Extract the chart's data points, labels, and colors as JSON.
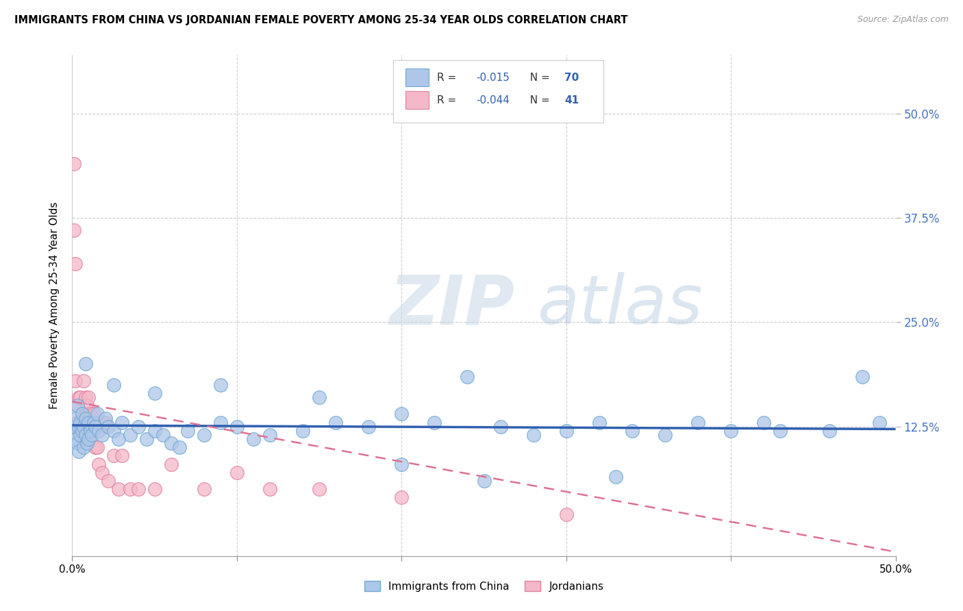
{
  "title": "IMMIGRANTS FROM CHINA VS JORDANIAN FEMALE POVERTY AMONG 25-34 YEAR OLDS CORRELATION CHART",
  "source": "Source: ZipAtlas.com",
  "ylabel": "Female Poverty Among 25-34 Year Olds",
  "watermark_zip": "ZIP",
  "watermark_atlas": "atlas",
  "xlim": [
    0.0,
    0.5
  ],
  "ylim": [
    -0.03,
    0.57
  ],
  "xtick_positions": [
    0.0,
    0.1,
    0.2,
    0.3,
    0.4,
    0.5
  ],
  "xtick_labels": [
    "0.0%",
    "",
    "",
    "",
    "",
    "50.0%"
  ],
  "right_yticks": [
    0.125,
    0.25,
    0.375,
    0.5
  ],
  "right_ytick_labels": [
    "12.5%",
    "25.0%",
    "37.5%",
    "50.0%"
  ],
  "series1_label": "Immigrants from China",
  "series1_color": "#aec6e8",
  "series1_edge_color": "#6fa8d4",
  "series2_label": "Jordanians",
  "series2_color": "#f4b8c8",
  "series2_edge_color": "#e080a0",
  "trendline1_color": "#3060b0",
  "trendline2_color": "#e07090",
  "legend_r1": "-0.015",
  "legend_n1": "70",
  "legend_r2": "-0.044",
  "legend_n2": "41",
  "blue_scatter_x": [
    0.001,
    0.002,
    0.002,
    0.003,
    0.003,
    0.004,
    0.004,
    0.005,
    0.005,
    0.006,
    0.006,
    0.007,
    0.007,
    0.008,
    0.008,
    0.009,
    0.01,
    0.01,
    0.011,
    0.012,
    0.013,
    0.014,
    0.015,
    0.016,
    0.018,
    0.02,
    0.022,
    0.025,
    0.028,
    0.03,
    0.035,
    0.04,
    0.045,
    0.05,
    0.055,
    0.06,
    0.065,
    0.07,
    0.08,
    0.09,
    0.1,
    0.11,
    0.12,
    0.14,
    0.16,
    0.18,
    0.2,
    0.22,
    0.24,
    0.26,
    0.28,
    0.3,
    0.32,
    0.34,
    0.36,
    0.38,
    0.4,
    0.42,
    0.46,
    0.48,
    0.008,
    0.025,
    0.05,
    0.09,
    0.15,
    0.2,
    0.25,
    0.33,
    0.43,
    0.49
  ],
  "blue_scatter_y": [
    0.125,
    0.135,
    0.11,
    0.15,
    0.105,
    0.125,
    0.095,
    0.13,
    0.115,
    0.12,
    0.14,
    0.1,
    0.125,
    0.115,
    0.135,
    0.105,
    0.13,
    0.11,
    0.12,
    0.115,
    0.13,
    0.125,
    0.14,
    0.12,
    0.115,
    0.135,
    0.125,
    0.12,
    0.11,
    0.13,
    0.115,
    0.125,
    0.11,
    0.12,
    0.115,
    0.105,
    0.1,
    0.12,
    0.115,
    0.13,
    0.125,
    0.11,
    0.115,
    0.12,
    0.13,
    0.125,
    0.14,
    0.13,
    0.185,
    0.125,
    0.115,
    0.12,
    0.13,
    0.12,
    0.115,
    0.13,
    0.12,
    0.13,
    0.12,
    0.185,
    0.2,
    0.175,
    0.165,
    0.175,
    0.16,
    0.08,
    0.06,
    0.065,
    0.12,
    0.13
  ],
  "pink_scatter_x": [
    0.001,
    0.001,
    0.002,
    0.002,
    0.003,
    0.003,
    0.004,
    0.004,
    0.005,
    0.005,
    0.006,
    0.006,
    0.007,
    0.007,
    0.008,
    0.008,
    0.009,
    0.01,
    0.01,
    0.011,
    0.012,
    0.013,
    0.014,
    0.015,
    0.016,
    0.018,
    0.02,
    0.022,
    0.025,
    0.028,
    0.03,
    0.035,
    0.04,
    0.05,
    0.06,
    0.08,
    0.1,
    0.12,
    0.15,
    0.2,
    0.3
  ],
  "pink_scatter_y": [
    0.44,
    0.36,
    0.32,
    0.18,
    0.15,
    0.13,
    0.16,
    0.12,
    0.16,
    0.13,
    0.14,
    0.11,
    0.13,
    0.18,
    0.14,
    0.16,
    0.15,
    0.13,
    0.16,
    0.14,
    0.12,
    0.14,
    0.1,
    0.1,
    0.08,
    0.07,
    0.13,
    0.06,
    0.09,
    0.05,
    0.09,
    0.05,
    0.05,
    0.05,
    0.08,
    0.05,
    0.07,
    0.05,
    0.05,
    0.04,
    0.02
  ],
  "blue_trendline_y0": 0.1265,
  "blue_trendline_y1": 0.122,
  "pink_trendline_y0": 0.155,
  "pink_trendline_y1": -0.025
}
